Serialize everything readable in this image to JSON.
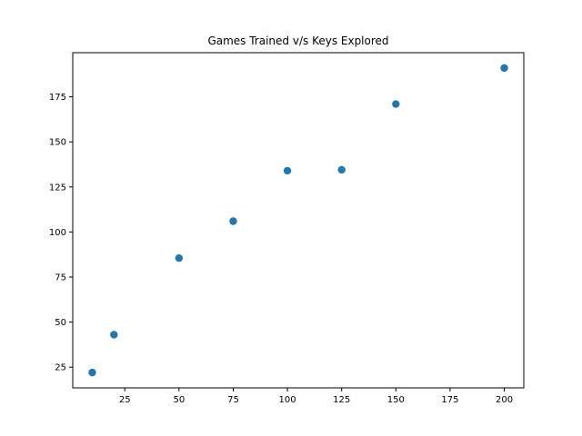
{
  "chart_data": {
    "type": "scatter",
    "title": "Games Trained v/s Keys Explored",
    "xlabel": "",
    "ylabel": "",
    "x": [
      10,
      20,
      50,
      75,
      100,
      125,
      150,
      200
    ],
    "y": [
      22,
      43,
      85.5,
      106,
      134,
      134.5,
      171,
      191
    ],
    "xlim": [
      1,
      209
    ],
    "ylim": [
      13.5,
      199.5
    ],
    "xticks": [
      25,
      50,
      75,
      100,
      125,
      150,
      175,
      200
    ],
    "yticks": [
      25,
      50,
      75,
      100,
      125,
      150,
      175
    ],
    "grid": false,
    "legend": "none",
    "marker_color": "#1f77b4"
  }
}
